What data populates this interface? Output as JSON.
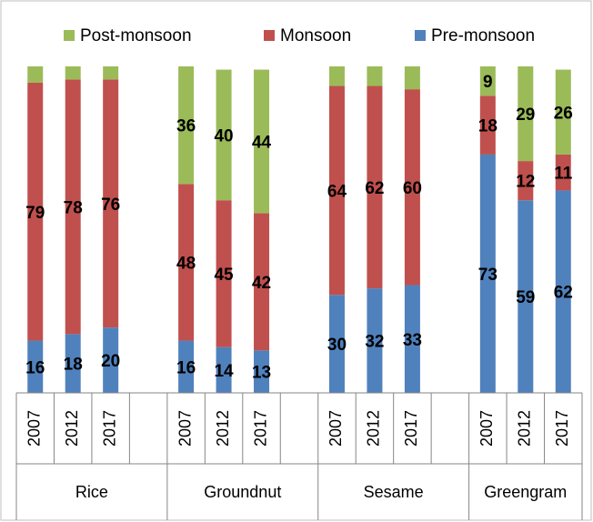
{
  "chart_data": {
    "type": "stacked_bar",
    "categories": [
      "2007",
      "2012",
      "2017",
      null,
      "2007",
      "2012",
      "2017",
      null,
      "2007",
      "2012",
      "2017",
      null,
      "2007",
      "2012",
      "2017"
    ],
    "groups": [
      "Rice",
      "Groundnut",
      "Sesame",
      "Greengram"
    ],
    "series": [
      {
        "name": "Pre-monsoon",
        "color": "#4f81bd",
        "values": [
          16,
          18,
          20,
          null,
          16,
          14,
          13,
          null,
          30,
          32,
          33,
          null,
          73,
          59,
          62
        ],
        "value_labels": [
          "16",
          "18",
          "20",
          null,
          "16",
          "14",
          "13",
          null,
          "30",
          "32",
          "33",
          null,
          "73",
          "59",
          "62"
        ]
      },
      {
        "name": "Monsoon",
        "color": "#c0504d",
        "values": [
          79,
          78,
          76,
          null,
          48,
          45,
          42,
          null,
          64,
          62,
          60,
          null,
          18,
          12,
          11
        ],
        "value_labels": [
          "79",
          "78",
          "76",
          null,
          "48",
          "45",
          "42",
          null,
          "64",
          "62",
          "60",
          null,
          "18",
          "12",
          "11"
        ]
      },
      {
        "name": "Post-monsoon",
        "color": "#9bbb59",
        "values": [
          5,
          4,
          4,
          null,
          36,
          40,
          44,
          null,
          6,
          6,
          7,
          null,
          9,
          29,
          26
        ],
        "value_labels": [
          null,
          null,
          null,
          null,
          "36",
          "40",
          "44",
          null,
          null,
          null,
          null,
          null,
          "9",
          "29",
          "26"
        ]
      }
    ],
    "ylim": [
      0,
      100
    ],
    "legend": "top"
  }
}
